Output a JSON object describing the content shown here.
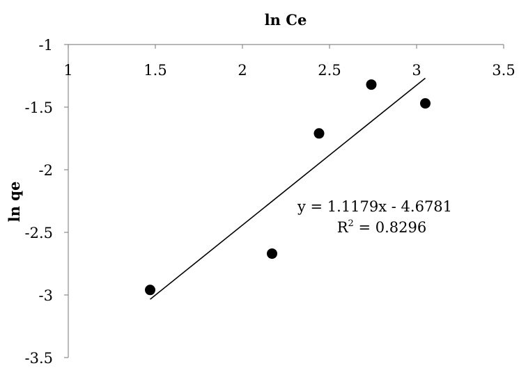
{
  "chart_data": {
    "type": "scatter",
    "title": "",
    "xlabel": "ln Ce",
    "ylabel": "ln qe",
    "x_axis_position": "top",
    "xlim": [
      1,
      3.5
    ],
    "ylim": [
      -3.5,
      -1
    ],
    "x_ticks": [
      1,
      1.5,
      2,
      2.5,
      3,
      3.5
    ],
    "y_ticks": [
      -1,
      -1.5,
      -2,
      -2.5,
      -3,
      -3.5
    ],
    "x_tick_labels": [
      "1",
      "1.5",
      "2",
      "2.5",
      "3",
      "3.5"
    ],
    "y_tick_labels": [
      "-1",
      "-1.5",
      "-2",
      "-2.5",
      "-3",
      "-3.5"
    ],
    "grid": false,
    "legend": "none",
    "series": [
      {
        "points": [
          {
            "x": 1.47,
            "y": -2.96
          },
          {
            "x": 2.17,
            "y": -2.67
          },
          {
            "x": 2.44,
            "y": -1.71
          },
          {
            "x": 2.74,
            "y": -1.32
          },
          {
            "x": 3.05,
            "y": -1.47
          }
        ],
        "marker_color": "#000000"
      }
    ],
    "trendline": {
      "slope": 1.1179,
      "intercept": -4.6781,
      "x_range": [
        1.47,
        3.05
      ],
      "equation_label": "y = 1.1179x - 4.6781",
      "r2_prefix": "R",
      "r2_superscript": "2",
      "r2_value": " = 0.8296",
      "color": "#000000"
    }
  }
}
